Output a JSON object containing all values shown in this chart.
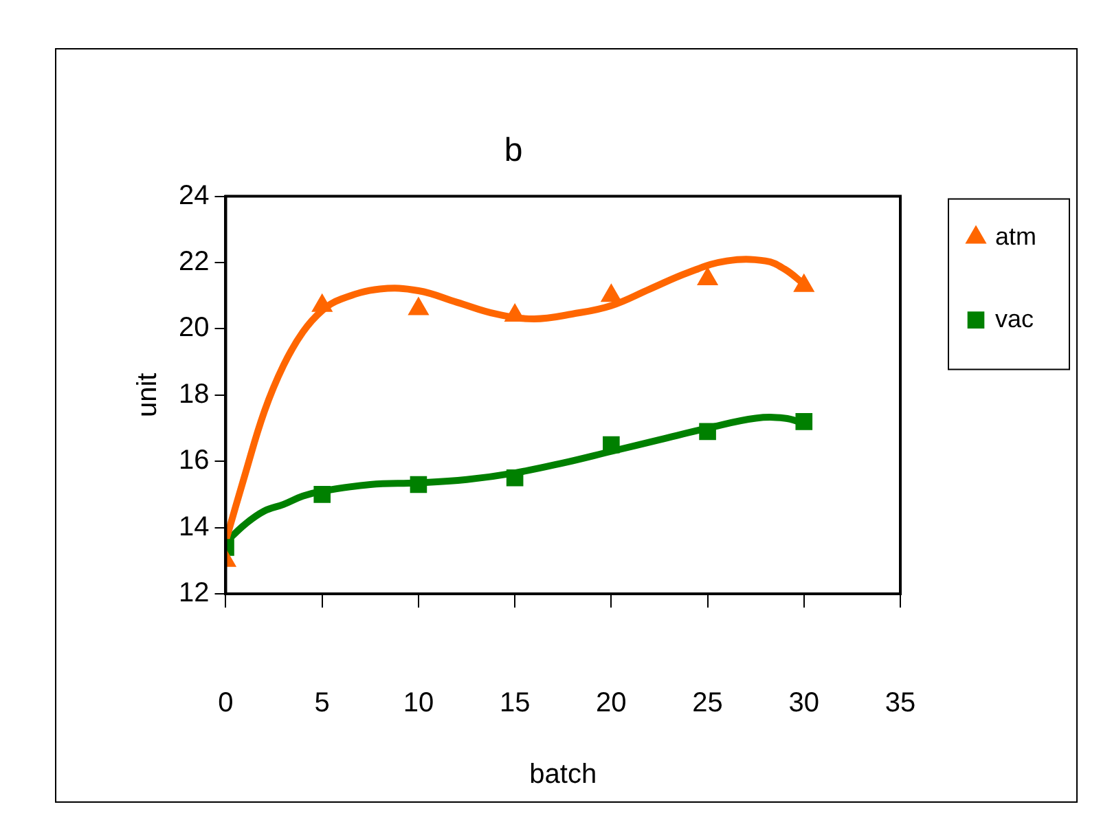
{
  "chart_data": {
    "type": "scatter",
    "title": "b",
    "xlabel": "batch",
    "ylabel": "unit",
    "xlim": [
      0,
      35
    ],
    "xticks": [
      0,
      5,
      10,
      15,
      20,
      25,
      30,
      35
    ],
    "ylim": [
      12,
      24
    ],
    "yticks": [
      12,
      14,
      16,
      18,
      20,
      22,
      24
    ],
    "grid": false,
    "legend": "right",
    "series": [
      {
        "name": "atm",
        "marker": "triangle",
        "color": "#ff6600",
        "x": [
          0,
          5,
          10,
          15,
          20,
          25,
          30
        ],
        "values": [
          13.0,
          20.7,
          20.6,
          20.4,
          21.0,
          21.5,
          21.3
        ]
      },
      {
        "name": "vac",
        "marker": "square",
        "color": "#008000",
        "x": [
          0,
          5,
          10,
          15,
          20,
          25,
          30
        ],
        "values": [
          13.4,
          15.0,
          15.3,
          15.5,
          16.5,
          16.9,
          17.2
        ]
      },
      {
        "type": "line",
        "marker": "none",
        "color": "#ff6600",
        "x": [
          0,
          1,
          2,
          3,
          4,
          5,
          6,
          8,
          10,
          12,
          14,
          16,
          18,
          20,
          22,
          24,
          26,
          28,
          29,
          30
        ],
        "values": [
          13.6,
          15.6,
          17.5,
          18.9,
          19.9,
          20.55,
          20.9,
          21.2,
          21.15,
          20.8,
          20.45,
          20.3,
          20.45,
          20.7,
          21.2,
          21.7,
          22.05,
          22.05,
          21.8,
          21.35
        ]
      },
      {
        "type": "line",
        "marker": "none",
        "color": "#008000",
        "x": [
          0,
          1,
          2,
          3,
          4,
          5,
          7.5,
          10,
          12.5,
          15,
          17.5,
          20,
          22.5,
          25,
          27.5,
          29,
          30
        ],
        "values": [
          13.55,
          14.1,
          14.5,
          14.7,
          14.95,
          15.1,
          15.3,
          15.35,
          15.45,
          15.65,
          15.95,
          16.3,
          16.65,
          17.0,
          17.3,
          17.3,
          17.15
        ]
      }
    ]
  }
}
